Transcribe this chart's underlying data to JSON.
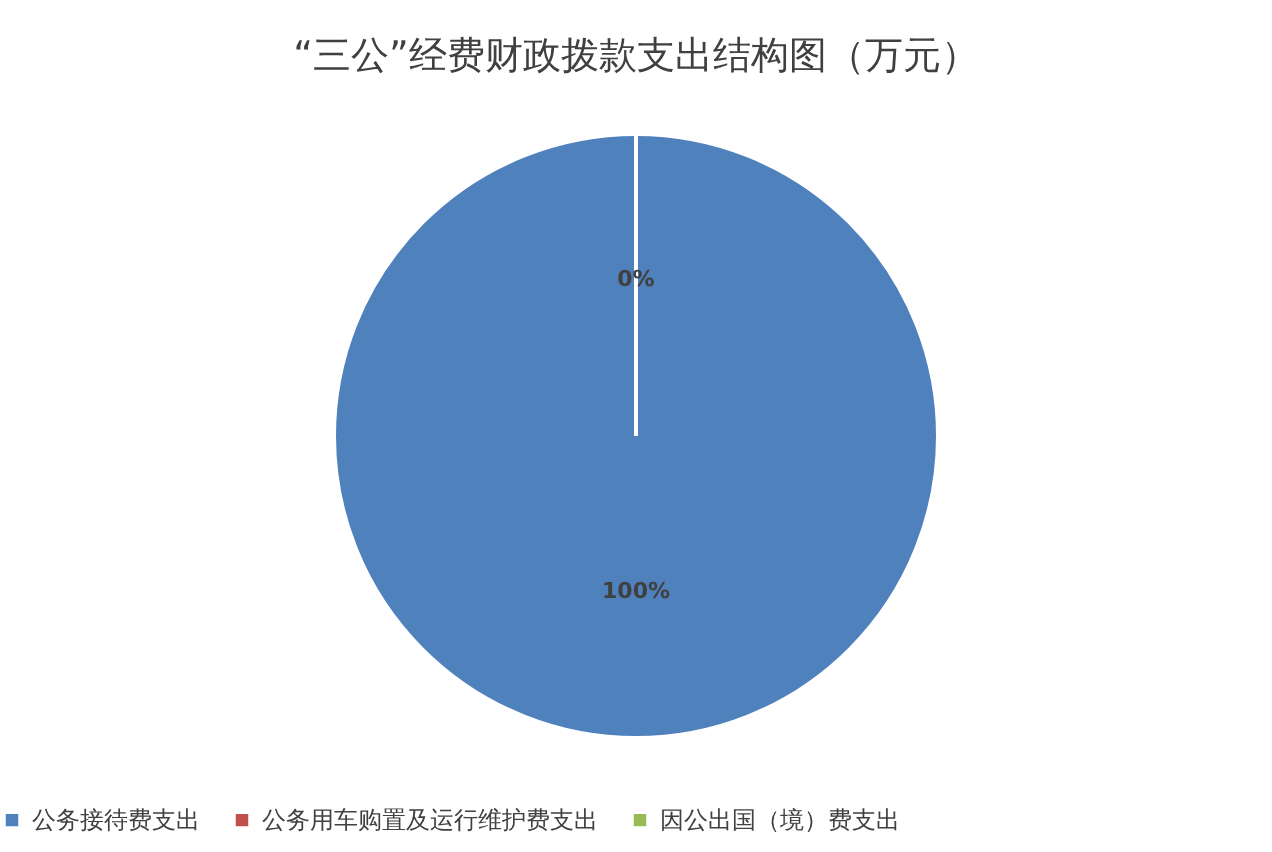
{
  "chart_data": {
    "type": "pie",
    "title": "“三公”经费财政拨款支出结构图（万元）",
    "categories": [
      "公务接待费支出",
      "公务用车购置及运行维护费支出",
      "因公出国（境）费支出"
    ],
    "values": [
      100,
      0,
      0
    ],
    "colors": [
      "#4f81bd",
      "#c0504d",
      "#9bbb59"
    ],
    "value_labels": [
      "100%",
      "0%",
      null
    ],
    "legend": "bottom"
  }
}
